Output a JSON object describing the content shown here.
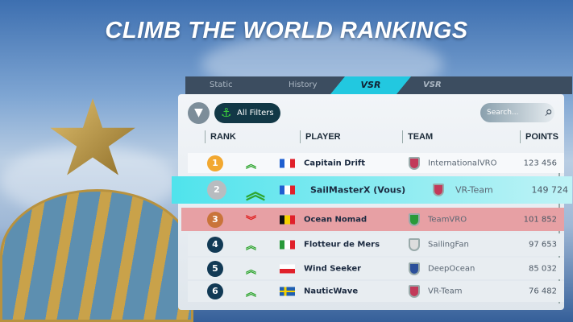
{
  "headline": "CLIMB THE WORLD RANKINGS",
  "tabs": [
    {
      "label": "Static"
    },
    {
      "label": "History"
    },
    {
      "label": "VSR",
      "active": true
    },
    {
      "label": "VSR"
    }
  ],
  "toolbar": {
    "filter_icon": "funnel-icon",
    "all_filters_label": "All Filters",
    "anchor_icon": "anchor-icon",
    "search_placeholder": "Search...",
    "search_icon": "magnifier-icon"
  },
  "columns": [
    "RANK",
    "PLAYER",
    "TEAM",
    "POINTS"
  ],
  "colors": {
    "highlight_self": "#4fe3ec",
    "highlight_down": "#e7a0a4",
    "trend_up": "#2ea52e",
    "trend_down": "#e02020"
  },
  "rows": [
    {
      "rank": "1",
      "trend": "up",
      "flag": "France",
      "player": "Capitain Drift",
      "team": "InternationalVRO",
      "points": "123 456"
    },
    {
      "rank": "2",
      "trend": "up",
      "flag": "France",
      "player": "SailMasterX (Vous)",
      "team": "VR-Team",
      "points": "149 724"
    },
    {
      "rank": "3",
      "trend": "down",
      "flag": "Belgium",
      "player": "Ocean Nomad",
      "team": "TeamVRO",
      "points": "101 852"
    },
    {
      "rank": "4",
      "trend": "up",
      "flag": "Italy",
      "player": "Flotteur de Mers",
      "team": "SailingFan",
      "points": "97 653"
    },
    {
      "rank": "5",
      "trend": "up",
      "flag": "Poland",
      "player": "Wind Seeker",
      "team": "DeepOcean",
      "points": "85 032"
    },
    {
      "rank": "6",
      "trend": "up",
      "flag": "Sweden",
      "player": "NauticWave",
      "team": "VR-Team",
      "points": "76 482"
    }
  ]
}
